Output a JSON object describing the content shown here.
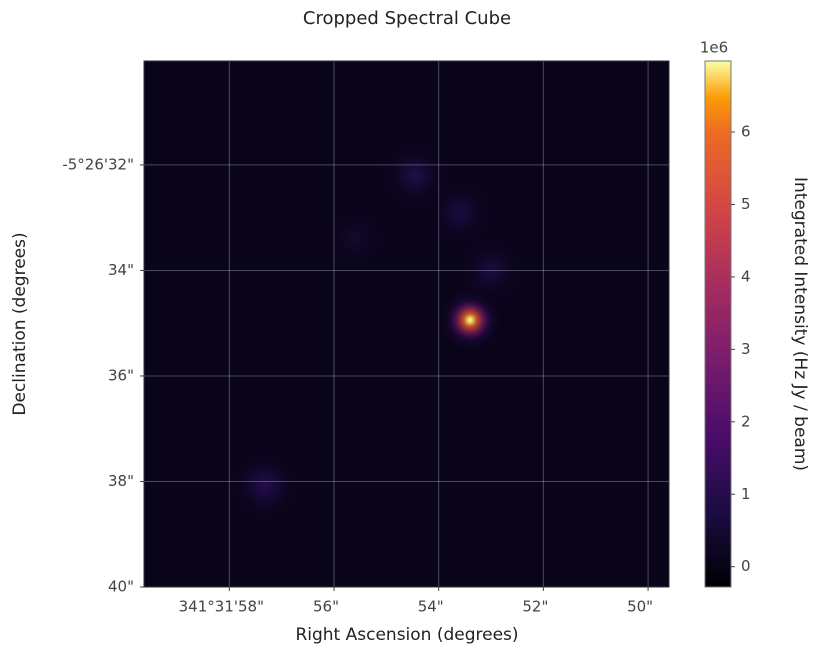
{
  "chart_data": {
    "type": "image",
    "title": "Cropped Spectral Cube",
    "x_label": "Right Ascension (degrees)",
    "y_label": "Declination (degrees)",
    "xlim": [
      59.63,
      49.6
    ],
    "ylim": [
      40,
      30.03
    ],
    "xticks": [
      {
        "value": 58,
        "label": "341°31'58\""
      },
      {
        "value": 56,
        "label": "56\""
      },
      {
        "value": 54,
        "label": "54\""
      },
      {
        "value": 52,
        "label": "52\""
      },
      {
        "value": 50,
        "label": "50\""
      }
    ],
    "yticks": [
      {
        "value": 32,
        "label": "-5°26'32\""
      },
      {
        "value": 34,
        "label": "34\""
      },
      {
        "value": 36,
        "label": "36\""
      },
      {
        "value": 38,
        "label": "38\""
      },
      {
        "value": 40,
        "label": "40\""
      }
    ],
    "grid": true,
    "colormap": "inferno",
    "colorbar": {
      "label": "Integrated Intensity (Hz Jy / beam)",
      "offset_label": "1e6",
      "clim": [
        -0.28,
        6.98
      ],
      "ticks": [
        0,
        1,
        2,
        3,
        4,
        5,
        6
      ]
    },
    "background_value": 0.1,
    "sources": {
      "x": [
        53.4,
        57.32,
        54.45,
        53.0,
        53.6,
        55.6
      ],
      "y": [
        34.94,
        38.08,
        32.19,
        34.0,
        32.9,
        33.4
      ],
      "values": [
        7,
        1,
        0.9,
        0.7,
        0.7,
        0.4
      ]
    }
  }
}
